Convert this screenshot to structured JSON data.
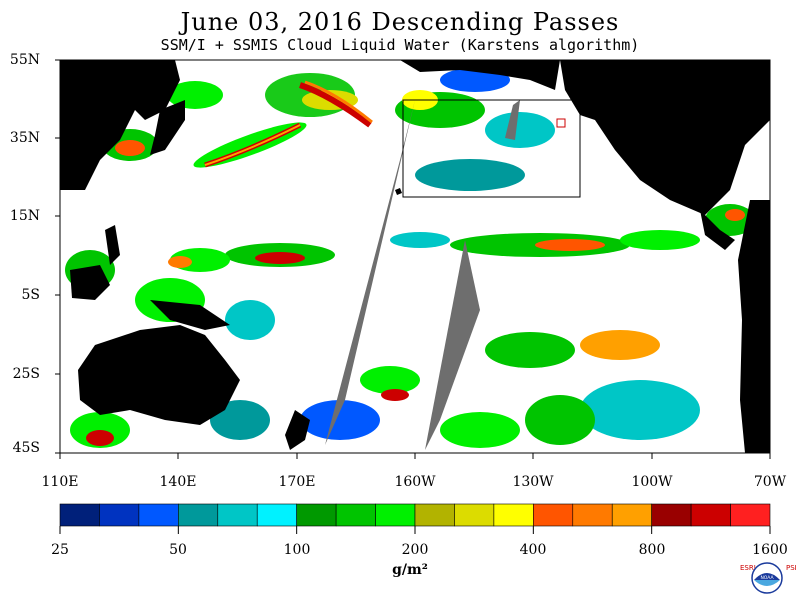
{
  "title": "June 03, 2016  Descending Passes",
  "subtitle": "SSM/I + SSMIS Cloud Liquid Water (Karstens algorithm)",
  "lat_labels": [
    "55N",
    "35N",
    "15N",
    "5S",
    "25S",
    "45S"
  ],
  "lon_labels": [
    "110E",
    "140E",
    "170E",
    "160W",
    "130W",
    "100W",
    "70W"
  ],
  "colorbar": {
    "tick_labels": [
      "25",
      "50",
      "100",
      "200",
      "400",
      "800",
      "1600"
    ],
    "unit_label": "g/m²",
    "colors": [
      "#00207a",
      "#0033c0",
      "#0058ff",
      "#00999b",
      "#00c6c6",
      "#00f2ff",
      "#009900",
      "#00c400",
      "#00f000",
      "#b2b300",
      "#dcdc00",
      "#ffff00",
      "#ff5500",
      "#ff7a00",
      "#ffa000",
      "#990000",
      "#cc0000",
      "#ff2020"
    ]
  },
  "colors": {
    "land": "#000000",
    "ocean_no_cloud": "#ffffff",
    "missing_swath": "#6e6e6e"
  },
  "logo": {
    "left_text": "ESRL",
    "right_text": "PSD",
    "center_text": "NOAA"
  }
}
